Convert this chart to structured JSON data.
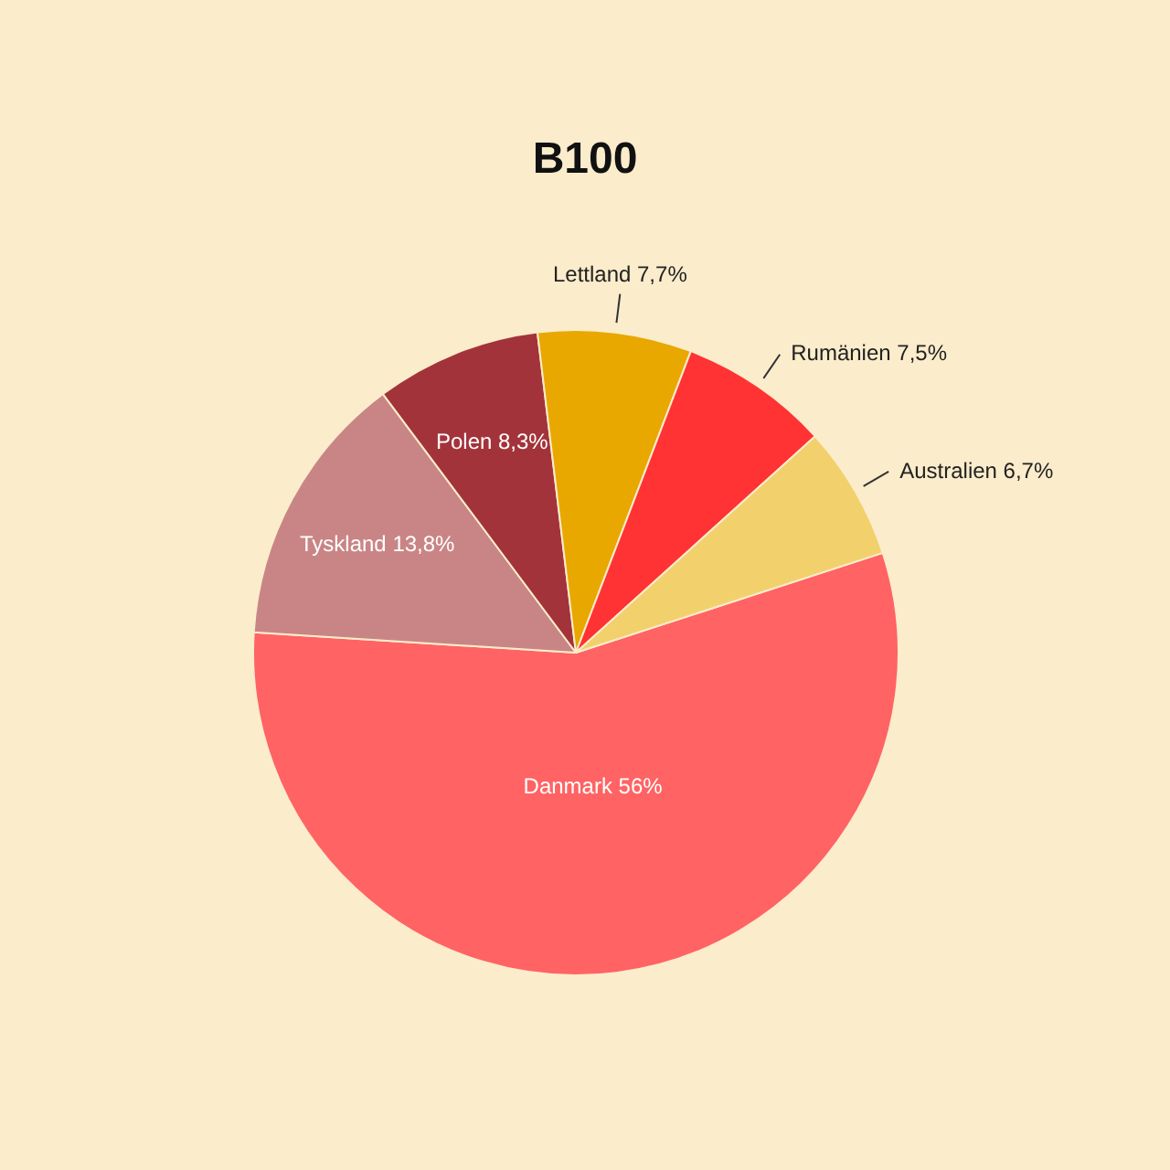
{
  "chart_data": {
    "type": "pie",
    "title": "B100",
    "categories": [
      "Danmark",
      "Tyskland",
      "Polen",
      "Lettland",
      "Rumänien",
      "Australien"
    ],
    "values": [
      56,
      13.8,
      8.3,
      7.7,
      7.5,
      6.7
    ],
    "colors": [
      "#ff6363",
      "#c98585",
      "#a3333a",
      "#e8a800",
      "#ff3333",
      "#f2d06b"
    ],
    "value_labels": [
      "56%",
      "13,8%",
      "8,3%",
      "7,7%",
      "7,5%",
      "6,7%"
    ],
    "legend": false
  }
}
